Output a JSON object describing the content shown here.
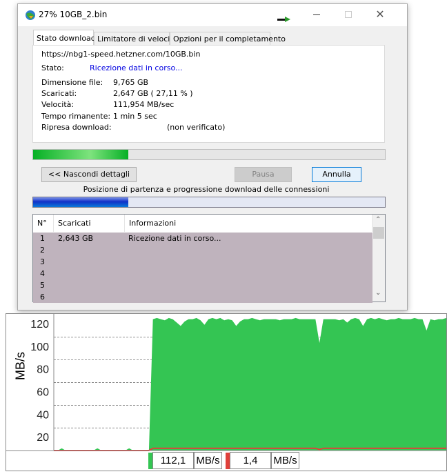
{
  "window": {
    "title": "27% 10GB_2.bin",
    "icon": "idm-globe-icon",
    "tray_arrow": "green-arrow-icon"
  },
  "tabs": [
    {
      "label": "Stato download",
      "active": true
    },
    {
      "label": "Limitatore di velocità"
    },
    {
      "label": "Opzioni per il completamento"
    }
  ],
  "info": {
    "url": "https://nbg1-speed.hetzner.com/10GB.bin",
    "status_label": "Stato:",
    "status_value": "Ricezione dati in corso...",
    "size_label": "Dimensione file:",
    "size_value": "9,765  GB",
    "downloaded_label": "Scaricati:",
    "downloaded_value": "2,647  GB  ( 27,11 % )",
    "speed_label": "Velocità:",
    "speed_value": "111,954  MB/sec",
    "remaining_label": "Tempo rimanente:",
    "remaining_value": "1 min 5 sec",
    "resume_label": "Ripresa download:",
    "resume_value": "(non verificato)"
  },
  "progress_percent": 27.11,
  "buttons": {
    "hide_details": "<< Nascondi dettagli",
    "pause": "Pausa",
    "cancel": "Annulla"
  },
  "connections_caption": "Posizione di partenza e progressione download delle connessioni",
  "connections_progress_percent": 27,
  "list": {
    "columns": [
      "N°",
      "Scaricati",
      "Informazioni"
    ],
    "rows": [
      {
        "n": "1",
        "downloaded": "2,643  GB",
        "info": "Ricezione dati in corso..."
      },
      {
        "n": "2",
        "downloaded": "",
        "info": ""
      },
      {
        "n": "3",
        "downloaded": "",
        "info": ""
      },
      {
        "n": "4",
        "downloaded": "",
        "info": ""
      },
      {
        "n": "5",
        "downloaded": "",
        "info": ""
      },
      {
        "n": "6",
        "downloaded": "",
        "info": ""
      }
    ]
  },
  "chart_data": {
    "type": "area",
    "ylabel": "MB/s",
    "ylim": [
      0,
      120
    ],
    "yticks": [
      "20",
      "40",
      "60",
      "80",
      "100",
      "120"
    ],
    "grid": "dashed horizontal",
    "series": [
      {
        "color": "#34c553",
        "values": [
          0,
          0,
          2,
          0,
          0,
          0,
          0,
          0,
          0,
          0,
          0,
          2,
          0,
          0,
          0,
          0,
          0,
          0,
          0,
          2,
          0,
          0,
          0,
          0,
          0,
          116,
          117,
          116,
          115,
          117,
          116,
          113,
          110,
          114,
          116,
          116,
          117,
          115,
          111,
          116,
          117,
          116,
          117,
          115,
          116,
          115,
          110,
          114,
          116,
          116,
          117,
          116,
          115,
          116,
          116,
          116,
          116,
          115,
          116,
          116,
          116,
          117,
          116,
          116,
          116,
          116,
          116,
          95,
          116,
          116,
          116,
          116,
          115,
          116,
          113,
          116,
          117,
          116,
          110,
          116,
          117,
          116,
          117,
          116,
          115,
          116,
          116,
          117,
          116,
          116,
          116,
          117,
          116,
          116,
          106,
          116,
          115,
          116,
          116,
          117
        ]
      },
      {
        "color": "#e0403a",
        "values": [
          0,
          0,
          0,
          0,
          0,
          0,
          0,
          0,
          0,
          0,
          0,
          0,
          0,
          0,
          0,
          0,
          0,
          0,
          0,
          0,
          0,
          0,
          0,
          0,
          0,
          2,
          2,
          2,
          2,
          2,
          2,
          2,
          2,
          2,
          2,
          2,
          2,
          2,
          2,
          2,
          2,
          2,
          2,
          2,
          2,
          2,
          2,
          2,
          2,
          2,
          2,
          2,
          2,
          2,
          2,
          2,
          2,
          2,
          2,
          2,
          2,
          2,
          2,
          2,
          2,
          2,
          2,
          1,
          2,
          2,
          2,
          2,
          2,
          2,
          2,
          2,
          2,
          2,
          2,
          2,
          2,
          2,
          2,
          2,
          2,
          2,
          2,
          2,
          2,
          2,
          2,
          2,
          2,
          2,
          2,
          2,
          2,
          2,
          2,
          2
        ]
      }
    ],
    "legend": [
      {
        "color": "#34c553",
        "value": "112,1",
        "unit": "MB/s"
      },
      {
        "color": "#e0403a",
        "value": "1,4",
        "unit": "MB/s"
      }
    ]
  }
}
